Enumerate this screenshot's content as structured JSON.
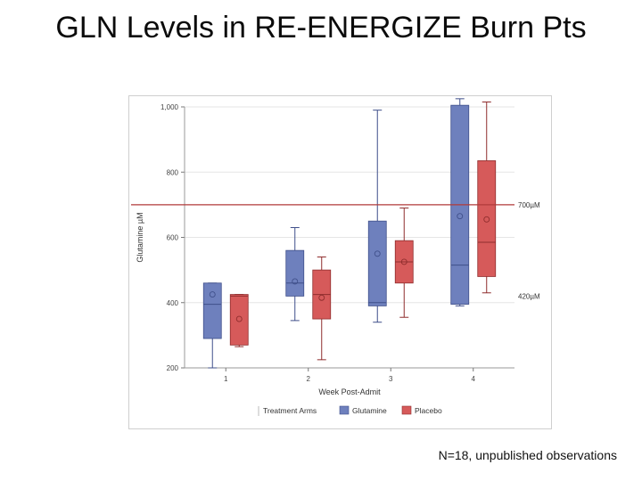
{
  "slide": {
    "title": "GLN Levels in RE-ENERGIZE Burn Pts",
    "footnote": "N=18, unpublished observations"
  },
  "chart_data": {
    "type": "box",
    "xlabel": "Week Post-Admit",
    "ylabel": "Glutamine µM",
    "categories": [
      "1",
      "2",
      "3",
      "4"
    ],
    "ylim": [
      200,
      1000
    ],
    "yticks": [
      200,
      400,
      600,
      800,
      1000
    ],
    "ytick_labels": [
      "200",
      "400",
      "600",
      "800",
      "1,000"
    ],
    "grid": true,
    "legend": {
      "title": "Treatment Arms",
      "position": "bottom"
    },
    "reference_lines": [
      {
        "value": 700,
        "label": "700µM",
        "color": "#b03a3a"
      },
      {
        "value": 420,
        "label": "420µM",
        "color": null
      }
    ],
    "series": [
      {
        "name": "Glutamine",
        "color": "#6e80bd",
        "edge": "#3f4f8a",
        "boxes": [
          {
            "category": "1",
            "min": 200,
            "q1": 290,
            "median": 395,
            "q3": 460,
            "max": 460,
            "mean": 425
          },
          {
            "category": "2",
            "min": 345,
            "q1": 420,
            "median": 460,
            "q3": 560,
            "max": 630,
            "mean": 465
          },
          {
            "category": "3",
            "min": 340,
            "q1": 390,
            "median": 400,
            "q3": 650,
            "max": 990,
            "mean": 550
          },
          {
            "category": "4",
            "min": 390,
            "q1": 395,
            "median": 515,
            "q3": 1005,
            "max": 1025,
            "mean": 665
          }
        ]
      },
      {
        "name": "Placebo",
        "color": "#d65a5a",
        "edge": "#8f2d2d",
        "boxes": [
          {
            "category": "1",
            "min": 265,
            "q1": 270,
            "median": 420,
            "q3": 425,
            "max": 425,
            "mean": 350
          },
          {
            "category": "2",
            "min": 225,
            "q1": 350,
            "median": 425,
            "q3": 500,
            "max": 540,
            "mean": 415
          },
          {
            "category": "3",
            "min": 355,
            "q1": 460,
            "median": 525,
            "q3": 590,
            "max": 690,
            "mean": 525
          },
          {
            "category": "4",
            "min": 430,
            "q1": 480,
            "median": 585,
            "q3": 835,
            "max": 1015,
            "mean": 655
          }
        ]
      }
    ]
  }
}
